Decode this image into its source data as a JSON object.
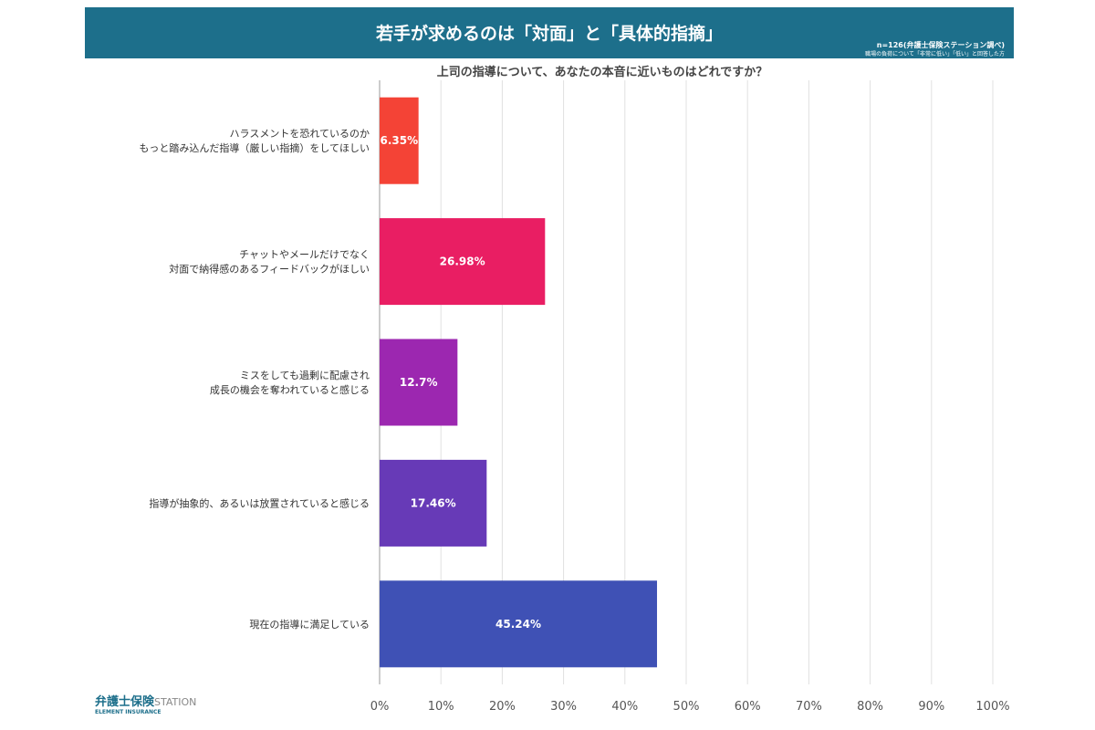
{
  "header": {
    "title": "若手が求めるのは「対面」と「具体的指摘」",
    "sample": "n=126(弁護士保険ステーション調べ)",
    "note": "職場の負荷について「非常に低い」「低い」と回答した方"
  },
  "logo": {
    "name": "弁護士保険",
    "suffix": "STATION",
    "sub": "ELEMENT INSURANCE"
  },
  "chart_data": {
    "type": "bar",
    "orientation": "horizontal",
    "title": "上司の指導について、あなたの本音に近いものはどれですか？",
    "categories": [
      [
        "ハラスメントを恐れているのか",
        "もっと踏み込んだ指導（厳しい指摘）をしてほしい"
      ],
      [
        "チャットやメールだけでなく",
        "対面で納得感のあるフィードバックがほしい"
      ],
      [
        "ミスをしても過剰に配慮され",
        "成長の機会を奪われていると感じる"
      ],
      [
        "指導が抽象的、あるいは放置されていると感じる"
      ],
      [
        "現在の指導に満足している"
      ]
    ],
    "values": [
      6.35,
      26.98,
      12.7,
      17.46,
      45.24
    ],
    "data_labels": [
      "6.35%",
      "26.98%",
      "12.7%",
      "17.46%",
      "45.24%"
    ],
    "colors": [
      "#f44336",
      "#e91e63",
      "#9c27b0",
      "#673ab7",
      "#3f51b5"
    ],
    "xlim": [
      0,
      100
    ],
    "ticks": [
      "0%",
      "10%",
      "20%",
      "30%",
      "40%",
      "50%",
      "60%",
      "70%",
      "80%",
      "90%",
      "100%"
    ],
    "grid": true
  }
}
